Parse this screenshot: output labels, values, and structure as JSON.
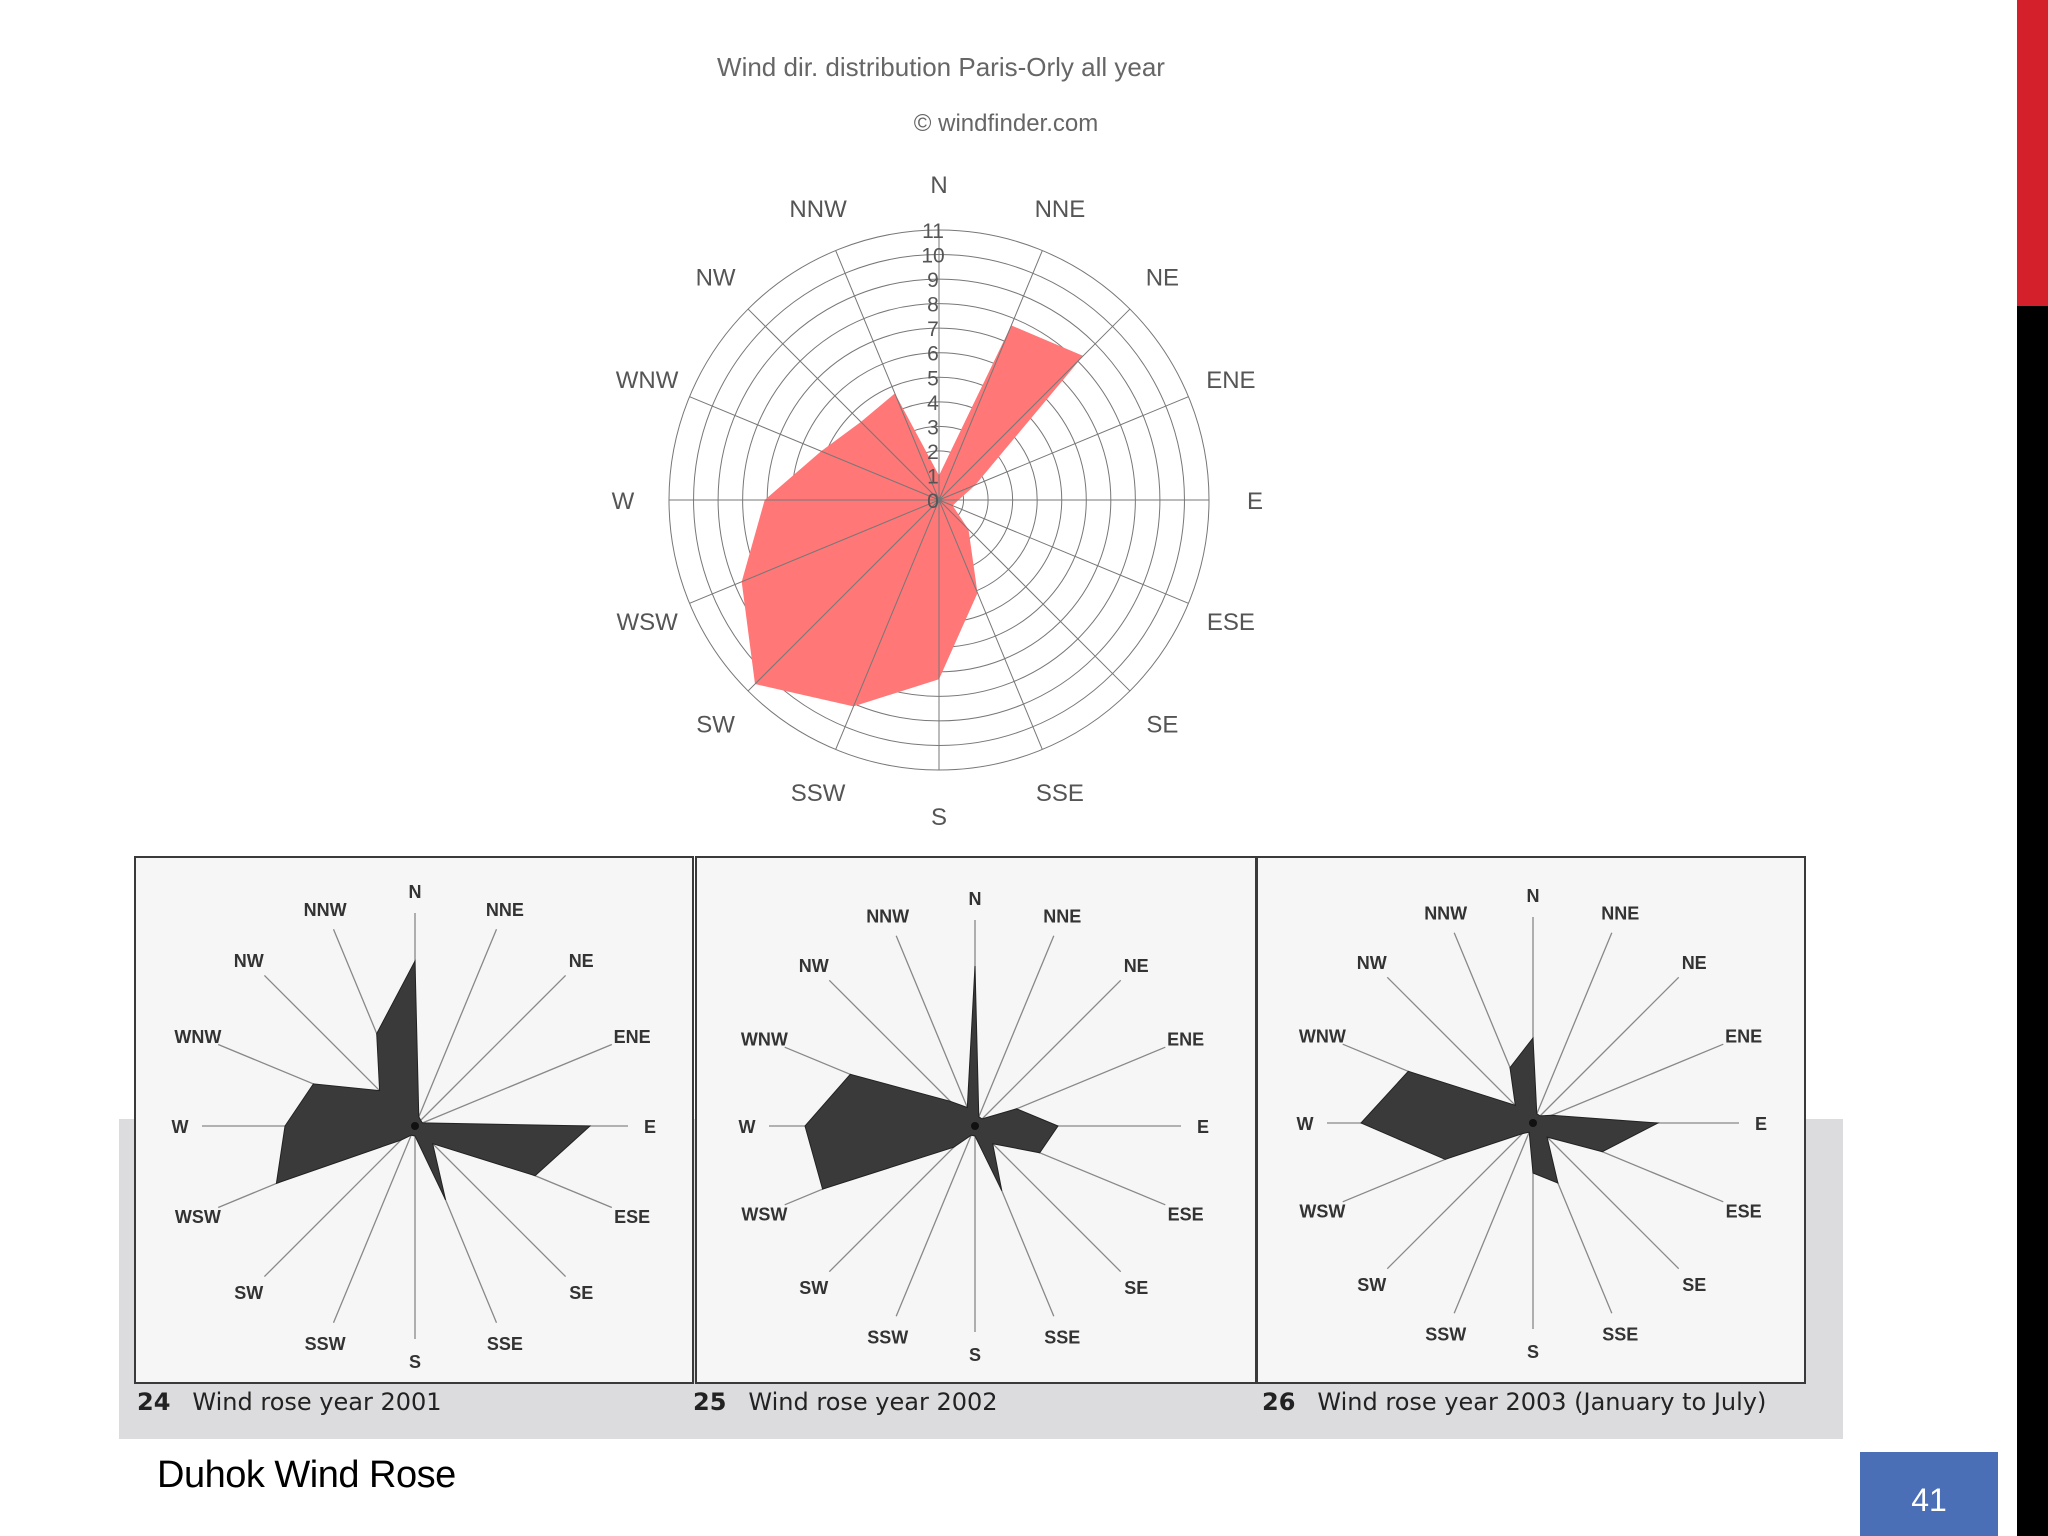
{
  "slide": {
    "title": "Duhok Wind Rose",
    "page_number": "41",
    "accent_red": "#d4202a",
    "accent_blue": "#4a6fb6"
  },
  "chart_data": [
    {
      "type": "radar",
      "title": "Wind dir. distribution Paris-Orly all year",
      "subtitle": "© windfinder.com",
      "directions": [
        "N",
        "NNE",
        "NE",
        "ENE",
        "E",
        "ESE",
        "SE",
        "SSE",
        "S",
        "SSW",
        "SW",
        "WSW",
        "W",
        "WNW",
        "NW",
        "NNW"
      ],
      "radial_ticks": [
        "0",
        "1",
        "2",
        "3",
        "4",
        "5",
        "6",
        "7",
        "8",
        "9",
        "10",
        "11"
      ],
      "rmax": 11,
      "grid": true,
      "fill_color": "#ff7777",
      "values": [
        1,
        7.7,
        8.3,
        1.6,
        0.8,
        0.6,
        1.7,
        4.1,
        7.3,
        9.1,
        10.6,
        8.7,
        7.1,
        5.2,
        4.5,
        4.7
      ]
    },
    {
      "type": "radar",
      "caption_number": "24",
      "caption": "Wind rose year 2001",
      "directions": [
        "N",
        "NNE",
        "NE",
        "ENE",
        "E",
        "ESE",
        "SE",
        "SSE",
        "S",
        "SSW",
        "SW",
        "WSW",
        "W",
        "WNW",
        "NW",
        "NNW"
      ],
      "fill_color": "#3a3a3a",
      "values": [
        165,
        10,
        8,
        8,
        175,
        130,
        25,
        80,
        10,
        10,
        20,
        150,
        130,
        110,
        50,
        100
      ]
    },
    {
      "type": "radar",
      "caption_number": "25",
      "caption": "Wind rose year 2002",
      "directions": [
        "N",
        "NNE",
        "NE",
        "ENE",
        "E",
        "ESE",
        "SE",
        "SSE",
        "S",
        "SSW",
        "SW",
        "WSW",
        "W",
        "WNW",
        "NW",
        "NNW"
      ],
      "fill_color": "#3a3a3a",
      "values": [
        160,
        10,
        10,
        45,
        83,
        70,
        25,
        70,
        10,
        10,
        30,
        165,
        170,
        135,
        35,
        20
      ]
    },
    {
      "type": "radar",
      "caption_number": "26",
      "caption": "Wind rose year 2003 (January to July)",
      "directions": [
        "N",
        "NNE",
        "NE",
        "ENE",
        "E",
        "ESE",
        "SE",
        "SSE",
        "S",
        "SSW",
        "SW",
        "WSW",
        "W",
        "WNW",
        "NW",
        "NNW"
      ],
      "fill_color": "#3a3a3a",
      "values": [
        85,
        10,
        10,
        20,
        125,
        75,
        20,
        65,
        50,
        10,
        15,
        95,
        172,
        135,
        25,
        60
      ]
    }
  ]
}
